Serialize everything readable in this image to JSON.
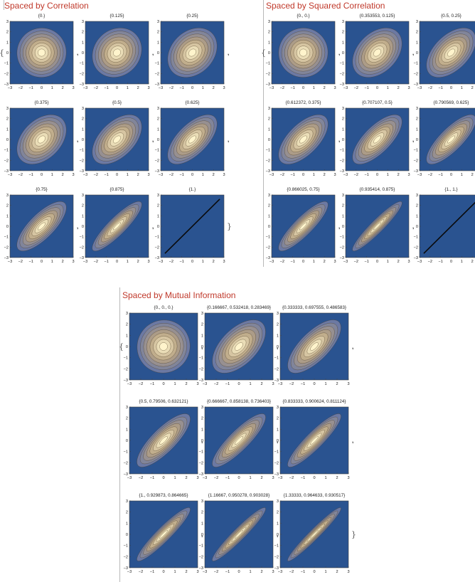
{
  "sections": [
    {
      "title": "Spaced by Correlation",
      "chart_data": {
        "type": "contour",
        "xlim": [
          -3,
          3
        ],
        "ylim": [
          -3,
          3
        ],
        "xticks": [
          -3,
          -2,
          -1,
          0,
          1,
          2,
          3
        ],
        "yticks": [
          -3,
          -2,
          -1,
          0,
          1,
          2,
          3
        ],
        "plots": [
          {
            "label": "{0.}",
            "rho": 0
          },
          {
            "label": "{0.125}",
            "rho": 0.125
          },
          {
            "label": "{0.25}",
            "rho": 0.25
          },
          {
            "label": "{0.375}",
            "rho": 0.375
          },
          {
            "label": "{0.5}",
            "rho": 0.5
          },
          {
            "label": "{0.625}",
            "rho": 0.625
          },
          {
            "label": "{0.75}",
            "rho": 0.75
          },
          {
            "label": "{0.875}",
            "rho": 0.875
          },
          {
            "label": "{1.}",
            "rho": 1
          }
        ]
      }
    },
    {
      "title": "Spaced by Squared Correlation",
      "chart_data": {
        "type": "contour",
        "xlim": [
          -3,
          3
        ],
        "ylim": [
          -3,
          3
        ],
        "xticks": [
          -3,
          -2,
          -1,
          0,
          1,
          2,
          3
        ],
        "yticks": [
          -3,
          -2,
          -1,
          0,
          1,
          2,
          3
        ],
        "plots": [
          {
            "label": "{0., 0.}",
            "rho": 0
          },
          {
            "label": "{0.353553, 0.125}",
            "rho": 0.353553
          },
          {
            "label": "{0.5, 0.25}",
            "rho": 0.5
          },
          {
            "label": "{0.612372, 0.375}",
            "rho": 0.612372
          },
          {
            "label": "{0.707107, 0.5}",
            "rho": 0.707107
          },
          {
            "label": "{0.790569, 0.625}",
            "rho": 0.790569
          },
          {
            "label": "{0.866025, 0.75}",
            "rho": 0.866025
          },
          {
            "label": "{0.935414, 0.875}",
            "rho": 0.935414
          },
          {
            "label": "{1., 1.}",
            "rho": 1
          }
        ]
      }
    },
    {
      "title": "Spaced by Mutual Information",
      "chart_data": {
        "type": "contour",
        "xlim": [
          -3,
          3
        ],
        "ylim": [
          -3,
          3
        ],
        "xticks": [
          -3,
          -2,
          -1,
          0,
          1,
          2,
          3
        ],
        "yticks": [
          -3,
          -2,
          -1,
          0,
          1,
          2,
          3
        ],
        "plots": [
          {
            "label": "{0., 0., 0.}",
            "rho": 0
          },
          {
            "label": "{0.166667, 0.532418, 0.283469}",
            "rho": 0.532418
          },
          {
            "label": "{0.333333, 0.697555, 0.486583}",
            "rho": 0.697555
          },
          {
            "label": "{0.5, 0.79506, 0.632121}",
            "rho": 0.79506
          },
          {
            "label": "{0.666667, 0.858138, 0.736403}",
            "rho": 0.858138
          },
          {
            "label": "{0.833333, 0.900624, 0.811124}",
            "rho": 0.900624
          },
          {
            "label": "{1., 0.929873, 0.864665}",
            "rho": 0.929873
          },
          {
            "label": "{1.16667, 0.950278, 0.903028}",
            "rho": 0.950278
          },
          {
            "label": "{1.33333, 0.964633, 0.930517}",
            "rho": 0.964633
          }
        ]
      }
    }
  ],
  "colors": {
    "title": "#c0392b",
    "background": "#2a5390",
    "outer_band": "#6c79a3",
    "band_mid": "#b7a283",
    "peak": "#fff4cc",
    "contour_line": "#4a3a22"
  }
}
